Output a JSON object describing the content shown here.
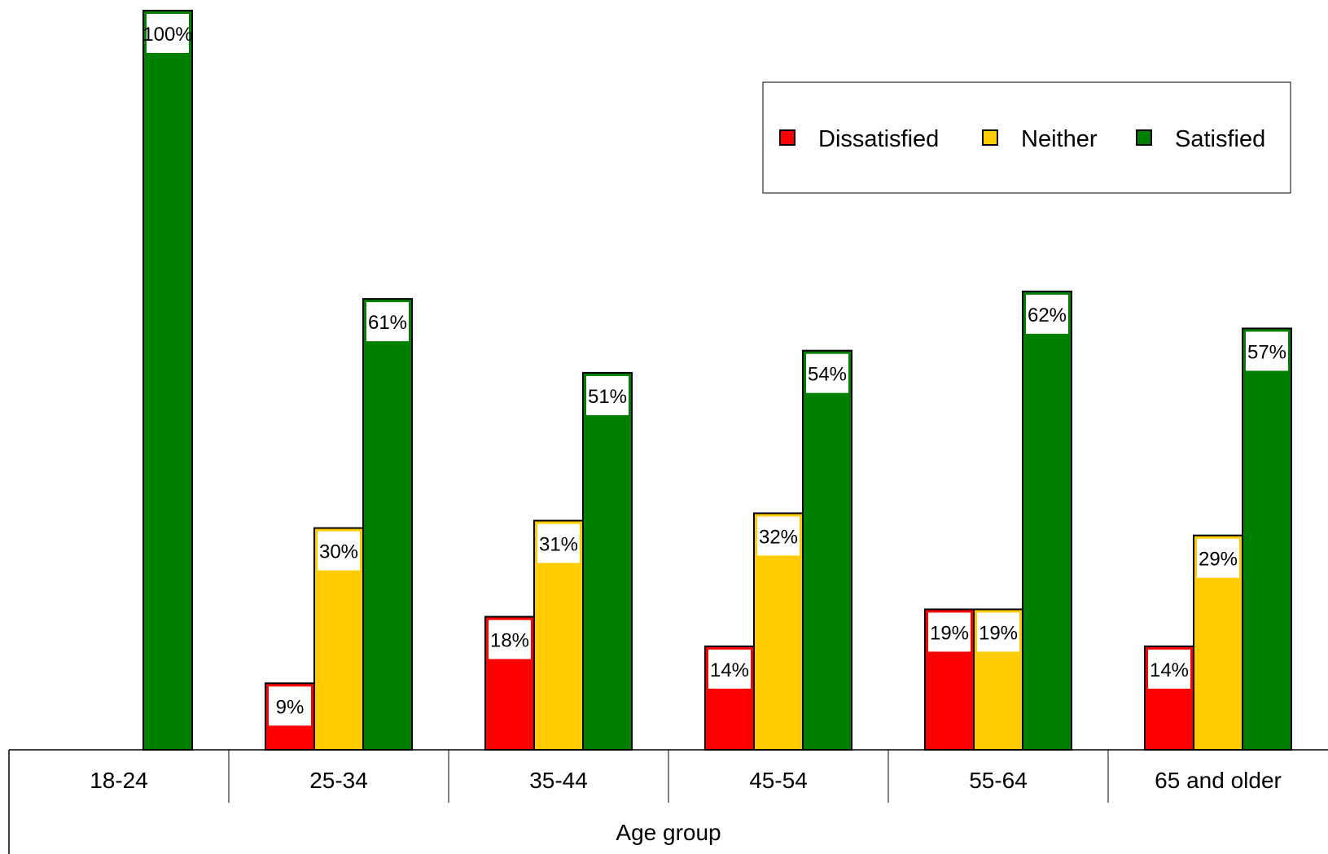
{
  "chart_data": {
    "type": "bar",
    "title": "",
    "xlabel": "Age group",
    "ylabel": "",
    "ylim": [
      0,
      100
    ],
    "grid": false,
    "legend_position": "top-right",
    "categories": [
      "18-24",
      "25-34",
      "35-44",
      "45-54",
      "55-64",
      "65 and older"
    ],
    "series": [
      {
        "name": "Dissatisfied",
        "color": "#ff0000",
        "values": [
          0,
          9,
          18,
          14,
          19,
          14
        ],
        "labels": [
          "",
          "9%",
          "18%",
          "14%",
          "19%",
          "14%"
        ]
      },
      {
        "name": "Neither",
        "color": "#ffcc00",
        "values": [
          0,
          30,
          31,
          32,
          19,
          29
        ],
        "labels": [
          "",
          "30%",
          "31%",
          "32%",
          "19%",
          "29%"
        ]
      },
      {
        "name": "Satisfied",
        "color": "#008000",
        "values": [
          100,
          61,
          51,
          54,
          62,
          57
        ],
        "labels": [
          "100%",
          "61%",
          "51%",
          "54%",
          "62%",
          "57%"
        ]
      }
    ]
  }
}
